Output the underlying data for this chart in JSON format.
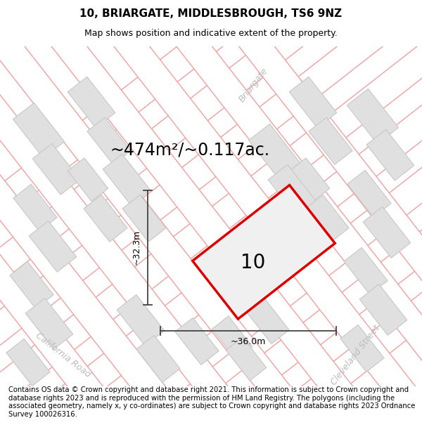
{
  "title": "10, BRIARGATE, MIDDLESBROUGH, TS6 9NZ",
  "subtitle": "Map shows position and indicative extent of the property.",
  "area_text": "~474m²/~0.117ac.",
  "property_number": "10",
  "dim_width": "~36.0m",
  "dim_height": "~32.3m",
  "footer_text": "Contains OS data © Crown copyright and database right 2021. This information is subject to Crown copyright and database rights 2023 and is reproduced with the permission of HM Land Registry. The polygons (including the associated geometry, namely x, y co-ordinates) are subject to Crown copyright and database rights 2023 Ordnance Survey 100026316.",
  "map_bg": "#ffffff",
  "road_outline_color": "#f0a0a0",
  "road_fill_color": "#ffffff",
  "block_fill": "#e0e0e0",
  "block_edge": "#c8c8c8",
  "property_fill": "#f0f0f0",
  "property_edge": "#dd0000",
  "dim_line_color": "#444444",
  "title_fontsize": 11,
  "subtitle_fontsize": 9,
  "area_fontsize": 17,
  "number_fontsize": 20,
  "dim_fontsize": 9,
  "footer_fontsize": 7.2,
  "road_label_color": "#bbbbbb",
  "road_label_fontsize": 9
}
